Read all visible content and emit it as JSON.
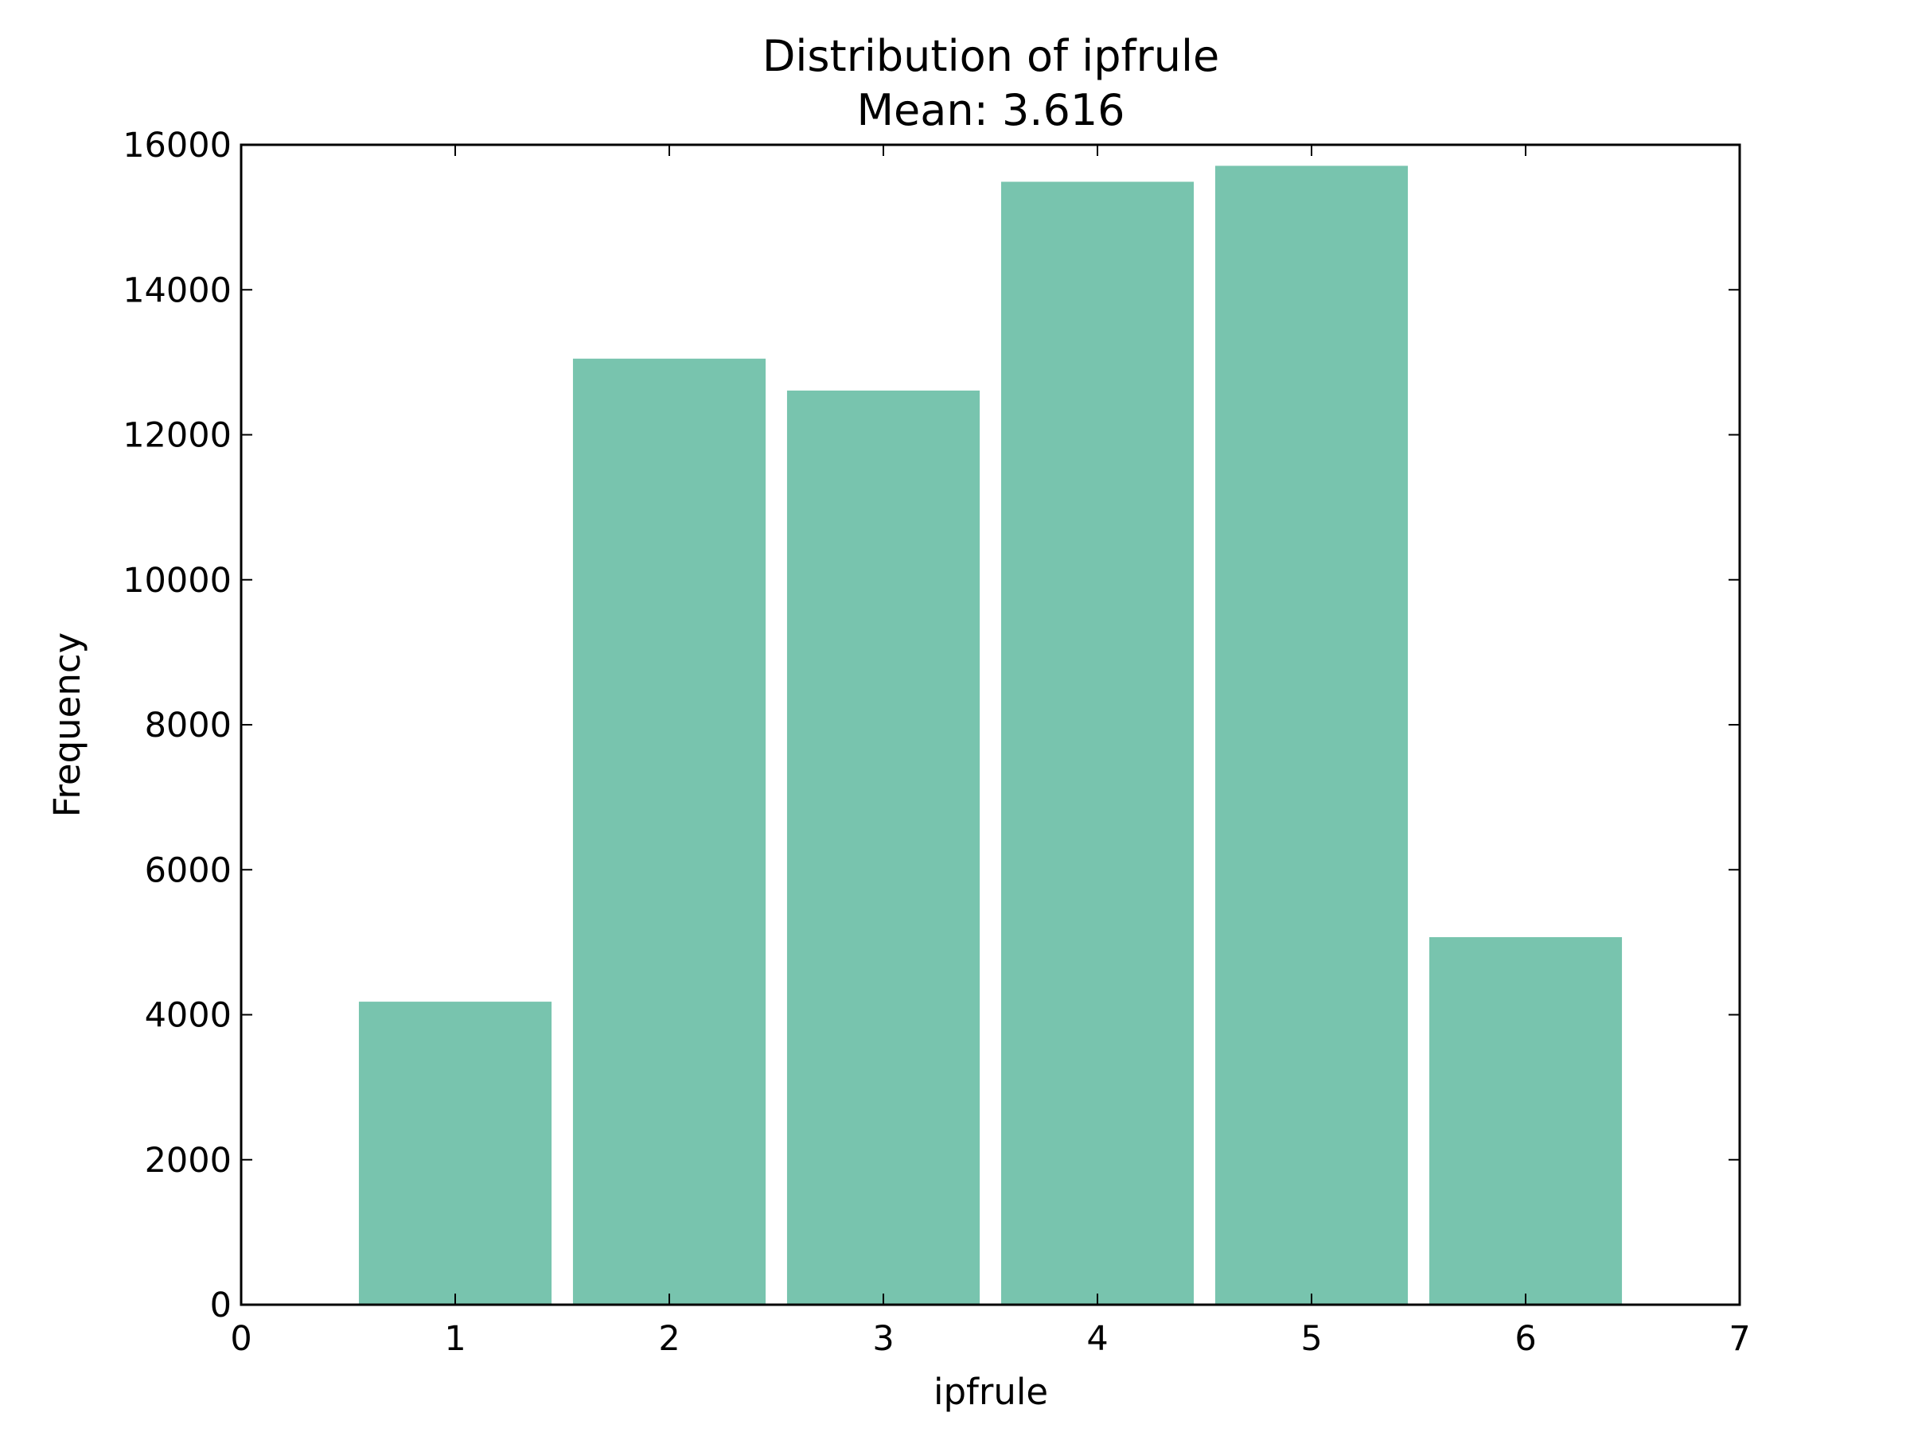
{
  "chart_data": {
    "type": "bar",
    "title": "Distribution of ipfrule",
    "subtitle": "Mean: 3.616",
    "xlabel": "ipfrule",
    "ylabel": "Frequency",
    "categories": [
      1,
      2,
      3,
      4,
      5,
      6
    ],
    "values": [
      4180,
      13050,
      12610,
      15490,
      15710,
      5070
    ],
    "bar_width": 0.9,
    "xlim": [
      0,
      7
    ],
    "ylim": [
      0,
      16000
    ],
    "xticks": [
      "0",
      "1",
      "2",
      "3",
      "4",
      "5",
      "6",
      "7"
    ],
    "yticks": [
      "0",
      "2000",
      "4000",
      "6000",
      "8000",
      "10000",
      "12000",
      "14000",
      "16000"
    ],
    "bar_color": "#78c4ae",
    "grid": false,
    "legend": "none"
  }
}
